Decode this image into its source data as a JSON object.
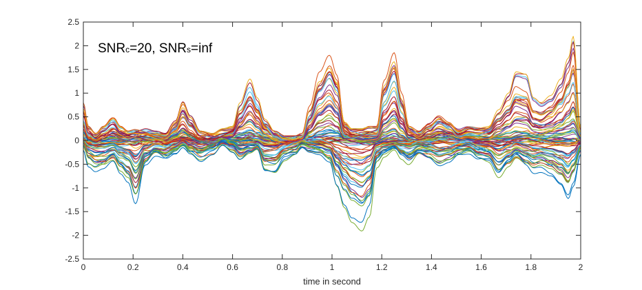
{
  "chart_data": {
    "type": "line",
    "title": "",
    "xlabel": "time in second",
    "ylabel": "",
    "xlim": [
      0,
      2
    ],
    "ylim": [
      -2.5,
      2.5
    ],
    "x_ticks": [
      0,
      0.2,
      0.4,
      0.6,
      0.8,
      1,
      1.2,
      1.4,
      1.6,
      1.8,
      2
    ],
    "y_ticks": [
      -2.5,
      -2,
      -1.5,
      -1,
      -0.5,
      0,
      0.5,
      1,
      1.5,
      2,
      2.5
    ],
    "x_tick_labels": [
      "0",
      "0.2",
      "0.4",
      "0.6",
      "0.8",
      "1",
      "1.2",
      "1.4",
      "1.6",
      "1.8",
      "2"
    ],
    "y_tick_labels": [
      "-2.5",
      "-2",
      "-1.5",
      "-1",
      "-0.5",
      "0",
      "0.5",
      "1",
      "1.5",
      "2",
      "2.5"
    ],
    "grid": false,
    "box": true,
    "annotation": {
      "parts": [
        {
          "text": "SNR",
          "sub": false
        },
        {
          "text": "c",
          "sub": true
        },
        {
          "text": "=20, SNR",
          "sub": false
        },
        {
          "text": "s",
          "sub": true
        },
        {
          "text": "=inf",
          "sub": false
        }
      ]
    },
    "envelope": {
      "x": [
        0,
        0.02,
        0.05,
        0.08,
        0.12,
        0.15,
        0.18,
        0.21,
        0.25,
        0.29,
        0.33,
        0.37,
        0.4,
        0.43,
        0.47,
        0.52,
        0.56,
        0.6,
        0.63,
        0.67,
        0.7,
        0.73,
        0.77,
        0.81,
        0.85,
        0.88,
        0.91,
        0.95,
        0.99,
        1.02,
        1.05,
        1.08,
        1.12,
        1.15,
        1.18,
        1.21,
        1.25,
        1.28,
        1.31,
        1.35,
        1.39,
        1.43,
        1.47,
        1.51,
        1.55,
        1.59,
        1.63,
        1.67,
        1.71,
        1.74,
        1.78,
        1.81,
        1.84,
        1.88,
        1.92,
        1.95,
        1.97,
        2.0
      ],
      "upper": [
        0.8,
        0.3,
        0.15,
        0.3,
        0.5,
        0.3,
        0.2,
        0.25,
        0.25,
        0.2,
        0.15,
        0.45,
        0.9,
        0.55,
        0.2,
        0.15,
        0.25,
        0.3,
        0.8,
        1.3,
        0.9,
        0.45,
        0.2,
        0.1,
        0.1,
        0.15,
        0.75,
        1.5,
        1.9,
        1.5,
        0.4,
        0.25,
        0.25,
        0.3,
        0.3,
        1.3,
        1.9,
        1.0,
        0.3,
        0.2,
        0.4,
        0.6,
        0.45,
        0.25,
        0.35,
        0.3,
        0.3,
        0.65,
        1.0,
        1.45,
        1.4,
        0.9,
        0.8,
        0.95,
        1.3,
        1.8,
        2.3,
        0.3
      ],
      "lower": [
        -0.2,
        -0.6,
        -0.75,
        -0.7,
        -0.5,
        -0.8,
        -1.0,
        -1.55,
        -0.6,
        -0.35,
        -0.45,
        -0.3,
        -0.15,
        -0.3,
        -0.45,
        -0.3,
        -0.1,
        -0.25,
        -0.45,
        -0.3,
        -0.2,
        -0.7,
        -0.75,
        -0.45,
        -0.35,
        -0.15,
        -0.25,
        -0.3,
        -0.5,
        -1.1,
        -1.6,
        -1.95,
        -2.15,
        -1.8,
        -0.6,
        -0.35,
        -0.2,
        -0.4,
        -0.55,
        -0.35,
        -0.45,
        -0.6,
        -0.5,
        -0.35,
        -0.3,
        -0.5,
        -0.55,
        -0.9,
        -0.6,
        -0.4,
        -0.6,
        -0.75,
        -0.7,
        -0.8,
        -1.0,
        -1.3,
        -1.0,
        -0.3
      ]
    },
    "series_count": 80,
    "series_colors": [
      "#0072bd",
      "#d95319",
      "#edb120",
      "#7e2f8e",
      "#77ac30",
      "#4dbeee",
      "#a2142f"
    ]
  }
}
